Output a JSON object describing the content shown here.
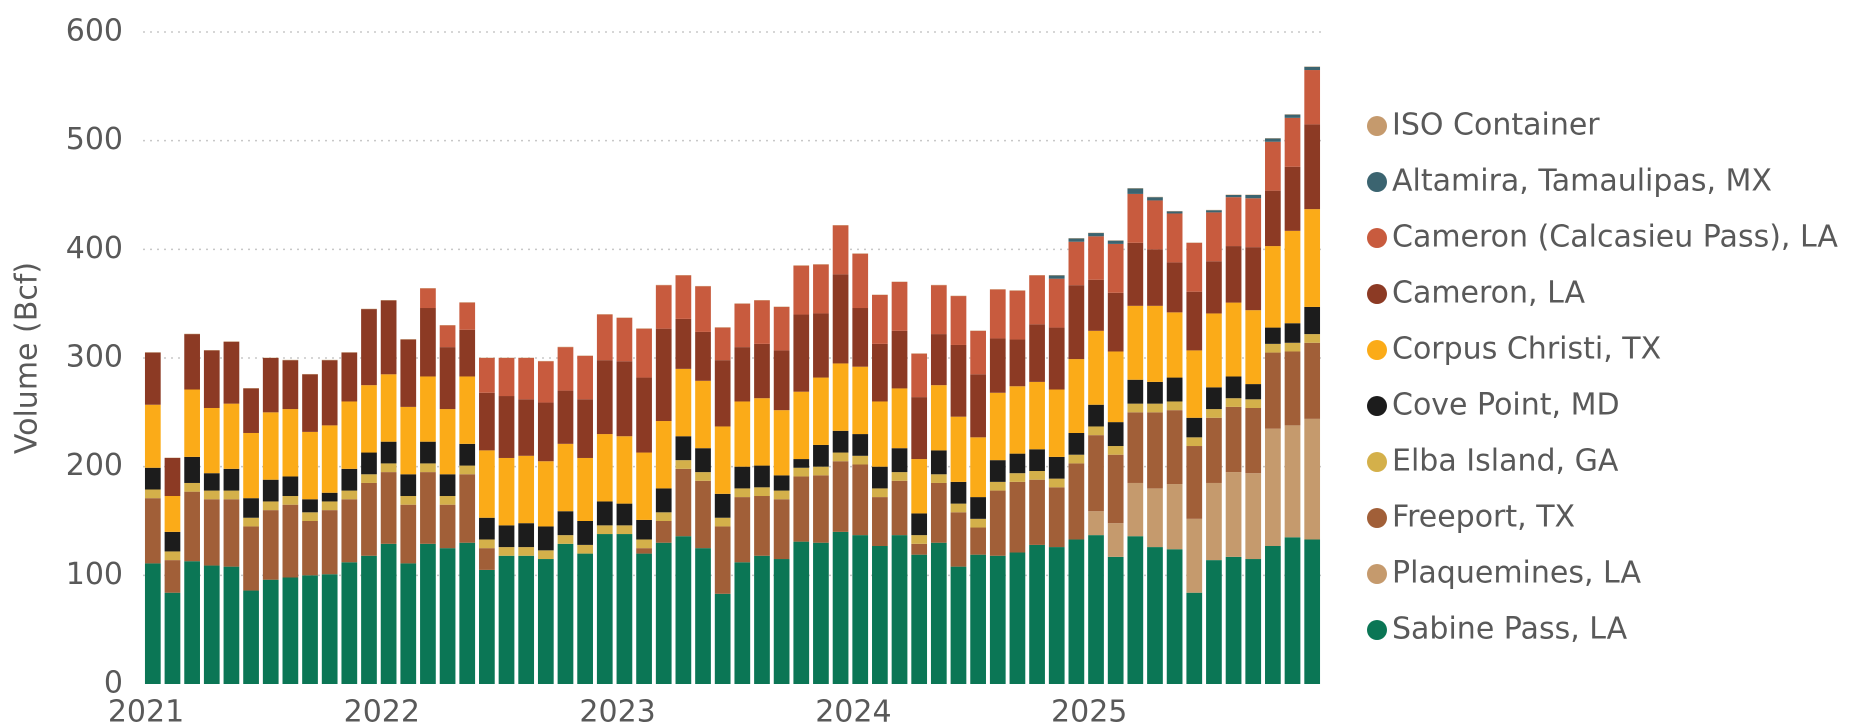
{
  "chart_data": {
    "type": "stacked_bar",
    "y_label": "Volume (Bcf)",
    "categories": [
      "2021",
      null,
      null,
      null,
      null,
      null,
      null,
      null,
      null,
      null,
      null,
      null,
      "2022",
      null,
      null,
      null,
      null,
      null,
      null,
      null,
      null,
      null,
      null,
      null,
      "2023",
      null,
      null,
      null,
      null,
      null,
      null,
      null,
      null,
      null,
      null,
      null,
      "2024",
      null,
      null,
      null,
      null,
      null,
      null,
      null,
      null,
      null,
      null,
      null,
      "2025",
      null,
      null,
      null,
      null,
      null,
      null,
      null,
      null,
      null,
      null,
      null
    ],
    "ylim": [
      0,
      600
    ],
    "yticks": [
      0,
      100,
      200,
      300,
      400,
      500,
      600
    ],
    "grid": true,
    "legend": "right",
    "series": [
      {
        "name": "Sabine Pass, LA",
        "color": "#0b7655",
        "values": [
          111,
          84,
          113,
          109,
          108,
          86,
          96,
          98,
          100,
          101,
          112,
          118,
          129,
          111,
          129,
          125,
          130,
          105,
          118,
          118,
          115,
          129,
          120,
          138,
          138,
          120,
          130,
          136,
          125,
          83,
          112,
          118,
          115,
          131,
          130,
          140,
          137,
          127,
          137,
          119,
          130,
          108,
          119,
          118,
          121,
          128,
          126,
          133,
          137,
          117,
          136,
          126,
          124,
          84,
          114,
          117,
          115,
          127,
          135,
          133
        ]
      },
      {
        "name": "Plaquemines, LA",
        "color": "#c59a6d",
        "values": [
          0,
          0,
          0,
          0,
          0,
          0,
          0,
          0,
          0,
          0,
          0,
          0,
          0,
          0,
          0,
          0,
          0,
          0,
          0,
          0,
          0,
          0,
          0,
          0,
          0,
          0,
          0,
          0,
          0,
          0,
          0,
          0,
          0,
          0,
          0,
          0,
          0,
          0,
          0,
          0,
          0,
          0,
          0,
          0,
          0,
          0,
          0,
          0,
          22,
          31,
          49,
          54,
          60,
          68,
          71,
          78,
          79,
          108,
          103,
          111
        ]
      },
      {
        "name": "Freeport, TX",
        "color": "#a15f38",
        "values": [
          60,
          30,
          64,
          61,
          62,
          59,
          64,
          67,
          50,
          59,
          58,
          67,
          66,
          54,
          66,
          40,
          63,
          20,
          0,
          0,
          0,
          0,
          0,
          0,
          0,
          5,
          20,
          62,
          62,
          62,
          60,
          55,
          55,
          60,
          62,
          65,
          65,
          45,
          50,
          10,
          55,
          50,
          25,
          60,
          65,
          60,
          55,
          70,
          70,
          63,
          65,
          70,
          68,
          67,
          60,
          60,
          60,
          70,
          68,
          70
        ]
      },
      {
        "name": "Elba Island, GA",
        "color": "#d4b04a",
        "values": [
          8,
          8,
          8,
          8,
          8,
          8,
          8,
          8,
          8,
          8,
          8,
          8,
          8,
          8,
          8,
          8,
          8,
          8,
          8,
          8,
          8,
          8,
          8,
          8,
          8,
          8,
          8,
          8,
          8,
          8,
          8,
          8,
          8,
          8,
          8,
          8,
          8,
          8,
          8,
          8,
          8,
          8,
          8,
          8,
          8,
          8,
          8,
          8,
          8,
          8,
          8,
          8,
          8,
          8,
          8,
          8,
          8,
          8,
          8,
          8
        ]
      },
      {
        "name": "Cove Point, MD",
        "color": "#1c1c1c",
        "values": [
          20,
          18,
          24,
          16,
          20,
          18,
          20,
          18,
          12,
          8,
          20,
          20,
          20,
          20,
          20,
          20,
          20,
          20,
          20,
          22,
          22,
          22,
          22,
          22,
          20,
          18,
          22,
          22,
          22,
          22,
          20,
          20,
          14,
          8,
          20,
          20,
          20,
          20,
          22,
          20,
          22,
          20,
          20,
          20,
          18,
          20,
          20,
          20,
          20,
          22,
          22,
          20,
          22,
          18,
          20,
          20,
          14,
          15,
          18,
          25
        ]
      },
      {
        "name": "Corpus Christi, TX",
        "color": "#fbab18",
        "values": [
          58,
          33,
          62,
          60,
          60,
          60,
          62,
          62,
          62,
          62,
          62,
          62,
          62,
          62,
          60,
          60,
          62,
          62,
          62,
          62,
          60,
          62,
          58,
          62,
          62,
          62,
          62,
          62,
          62,
          62,
          60,
          62,
          60,
          62,
          62,
          62,
          62,
          60,
          55,
          50,
          60,
          60,
          55,
          62,
          62,
          62,
          62,
          68,
          68,
          65,
          68,
          70,
          60,
          62,
          68,
          68,
          68,
          75,
          85,
          90
        ]
      },
      {
        "name": "Cameron, LA",
        "color": "#8c3a24",
        "values": [
          48,
          35,
          51,
          53,
          57,
          41,
          50,
          45,
          53,
          60,
          45,
          70,
          68,
          62,
          63,
          57,
          43,
          53,
          57,
          52,
          54,
          49,
          54,
          68,
          69,
          69,
          85,
          46,
          45,
          61,
          50,
          50,
          55,
          71,
          59,
          82,
          54,
          53,
          53,
          57,
          47,
          66,
          58,
          50,
          43,
          53,
          57,
          68,
          47,
          54,
          58,
          52,
          46,
          54,
          48,
          52,
          58,
          51,
          59,
          78
        ]
      },
      {
        "name": "Cameron (Calcasieu Pass), LA",
        "color": "#c85b3e",
        "values": [
          0,
          0,
          0,
          0,
          0,
          0,
          0,
          0,
          0,
          0,
          0,
          0,
          0,
          0,
          18,
          20,
          25,
          32,
          35,
          38,
          38,
          40,
          40,
          42,
          40,
          45,
          40,
          40,
          42,
          30,
          40,
          40,
          40,
          45,
          45,
          45,
          50,
          45,
          45,
          40,
          45,
          45,
          40,
          45,
          45,
          45,
          45,
          40,
          40,
          45,
          45,
          45,
          45,
          45,
          45,
          45,
          45,
          45,
          45,
          50
        ]
      },
      {
        "name": "Altamira, Tamaulipas, MX",
        "color": "#3b6470",
        "values": [
          0,
          0,
          0,
          0,
          0,
          0,
          0,
          0,
          0,
          0,
          0,
          0,
          0,
          0,
          0,
          0,
          0,
          0,
          0,
          0,
          0,
          0,
          0,
          0,
          0,
          0,
          0,
          0,
          0,
          0,
          0,
          0,
          0,
          0,
          0,
          0,
          0,
          0,
          0,
          0,
          0,
          0,
          0,
          0,
          0,
          0,
          3,
          3,
          3,
          3,
          5,
          3,
          2,
          0,
          2,
          2,
          3,
          3,
          3,
          3
        ]
      },
      {
        "name": "ISO Container",
        "color": "#c59a6d",
        "values": [
          0.3,
          0.3,
          0.3,
          0.3,
          0.3,
          0.3,
          0.3,
          0.3,
          0.3,
          0.3,
          0.3,
          0.3,
          0.3,
          0.3,
          0.3,
          0.3,
          0.3,
          0.3,
          0.3,
          0.3,
          0.3,
          0.3,
          0.3,
          0.3,
          0.3,
          0.3,
          0.3,
          0.3,
          0.3,
          0.3,
          0.3,
          0.3,
          0.3,
          0.3,
          0.3,
          0.3,
          0.3,
          0.3,
          0.3,
          0.3,
          0.3,
          0.3,
          0.3,
          0.3,
          0.3,
          0.3,
          0.3,
          0.3,
          0.3,
          0.3,
          0.3,
          0.3,
          0.3,
          0.3,
          0.3,
          0.3,
          0.3,
          0.3,
          0.3,
          0.3
        ]
      }
    ]
  }
}
